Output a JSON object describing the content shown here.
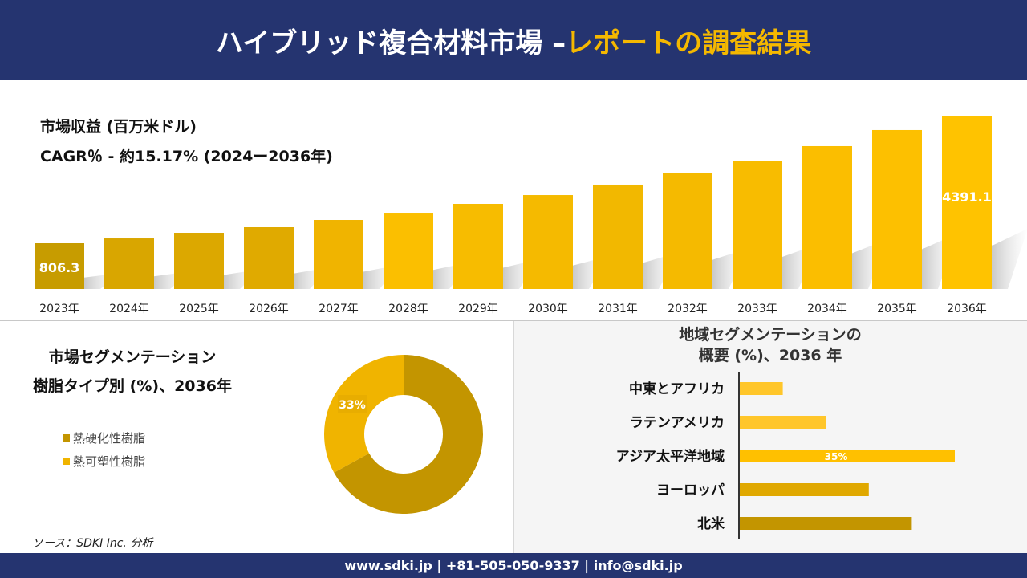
{
  "header": {
    "title_white": "ハイブリッド複合材料市場 –",
    "title_accent": "レポートの調査結果"
  },
  "colors": {
    "navy": "#253470",
    "accent": "#f5b800",
    "dark_gold": "#c39500",
    "gold": "#e0a800",
    "light_gold": "#ffc62a"
  },
  "chart_data": [
    {
      "type": "bar",
      "title": "市場収益 (百万米ドル)",
      "subtitle": "CAGR％ - 約15.17% (2024ー2036年)",
      "categories": [
        "2023年",
        "2024年",
        "2025年",
        "2026年",
        "2027年",
        "2028年",
        "2029年",
        "2030年",
        "2031年",
        "2032年",
        "2033年",
        "2034年",
        "2035年",
        "2036年"
      ],
      "values": [
        806.3,
        942,
        1101,
        1260,
        1464,
        1668,
        1918,
        2167,
        2463,
        2803,
        3143,
        3552,
        4006,
        4391.1
      ],
      "data_labels": {
        "0": "806.3",
        "13": "4391.1"
      }
    },
    {
      "type": "pie",
      "title_line1": "市場セグメンテーション",
      "title_line2": "樹脂タイプ別 (%)、2036年",
      "labels": [
        "熱硬化性樹脂",
        "熱可塑性樹脂"
      ],
      "values": [
        67,
        33
      ],
      "colors": [
        "#c39500",
        "#f0b400"
      ],
      "data_label": "33%"
    },
    {
      "type": "bar",
      "orientation": "horizontal",
      "title_line1": "地域セグメンテーションの",
      "title_line2": "概要 (%)、2036 年",
      "categories": [
        "中東とアフリカ",
        "ラテンアメリカ",
        "アジア太平洋地域",
        "ヨーロッパ",
        "北米"
      ],
      "values": [
        7,
        14,
        35,
        21,
        28
      ],
      "colors": [
        "#ffc62a",
        "#ffc62a",
        "#ffc000",
        "#e0a800",
        "#c39500"
      ],
      "data_label": "35%"
    }
  ],
  "source": "ソース：SDKI Inc. 分析",
  "footer": "www.sdki.jp | +81-505-050-9337 | info@sdki.jp"
}
